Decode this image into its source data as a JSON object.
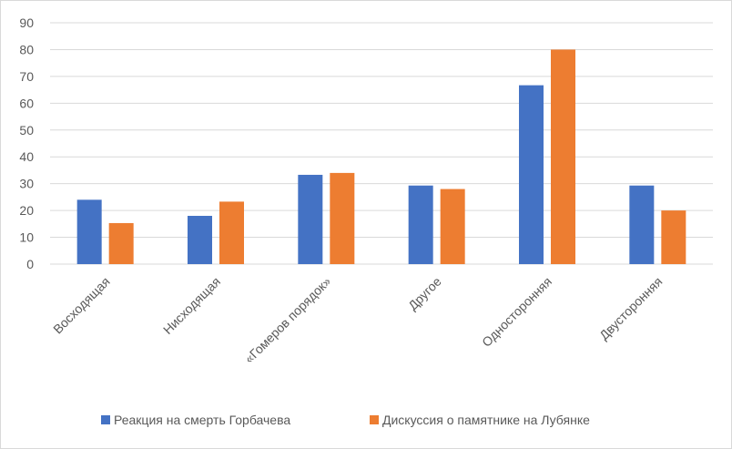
{
  "chart_data": {
    "type": "bar",
    "title": "",
    "xlabel": "",
    "ylabel": "",
    "ylim": [
      0,
      90
    ],
    "yticks": [
      0,
      10,
      20,
      30,
      40,
      50,
      60,
      70,
      80,
      90
    ],
    "grid": true,
    "legend_position": "bottom",
    "categories": [
      "Восходящая",
      "Нисходящая",
      "«Гомеров порядок»",
      "Другое",
      "Односторонняя",
      "Двусторонняя"
    ],
    "series": [
      {
        "name": "Реакция на смерть Горбачева",
        "color": "#4472c4",
        "values": [
          24,
          18,
          33.3,
          29.3,
          66.7,
          29.3
        ]
      },
      {
        "name": "Дискуссия о памятнике на Лубянке",
        "color": "#ed7d31",
        "values": [
          15.3,
          23.3,
          34,
          28,
          80,
          20
        ]
      }
    ]
  }
}
